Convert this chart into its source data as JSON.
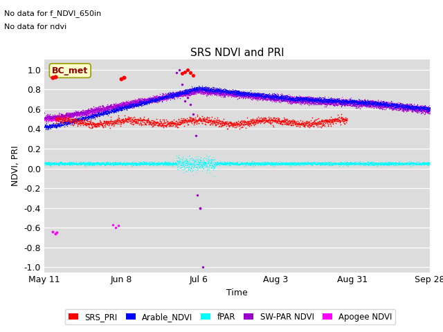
{
  "title": "SRS NDVI and PRI",
  "ylabel": "NDVI, PRI",
  "xlabel": "Time",
  "annotation1": "No data for f_NDVI_650in",
  "annotation2": "No data for ndvi",
  "legend_label": "BC_met",
  "ylim": [
    -1.05,
    1.1
  ],
  "yticks": [
    -1.0,
    -0.8,
    -0.6,
    -0.4,
    -0.2,
    0.0,
    0.2,
    0.4,
    0.6,
    0.8,
    1.0
  ],
  "bg_color": "#dcdcdc",
  "colors": {
    "SRS_PRI": "#ff0000",
    "Arable_NDVI": "#0000ff",
    "fPAR": "#00ffff",
    "SW_PAR_NDVI": "#9900cc",
    "Apogee_NDVI": "#ff00ff"
  },
  "legend_entries": [
    "SRS_PRI",
    "Arable_NDVI",
    "fPAR",
    "SW-PAR NDVI",
    "Apogee NDVI"
  ],
  "xtick_labels": [
    "May 11",
    "Jun 8",
    "Jul 6",
    "Aug 3",
    "Aug 31",
    "Sep 28"
  ],
  "tick_days": [
    0,
    28,
    56,
    84,
    112,
    140
  ]
}
